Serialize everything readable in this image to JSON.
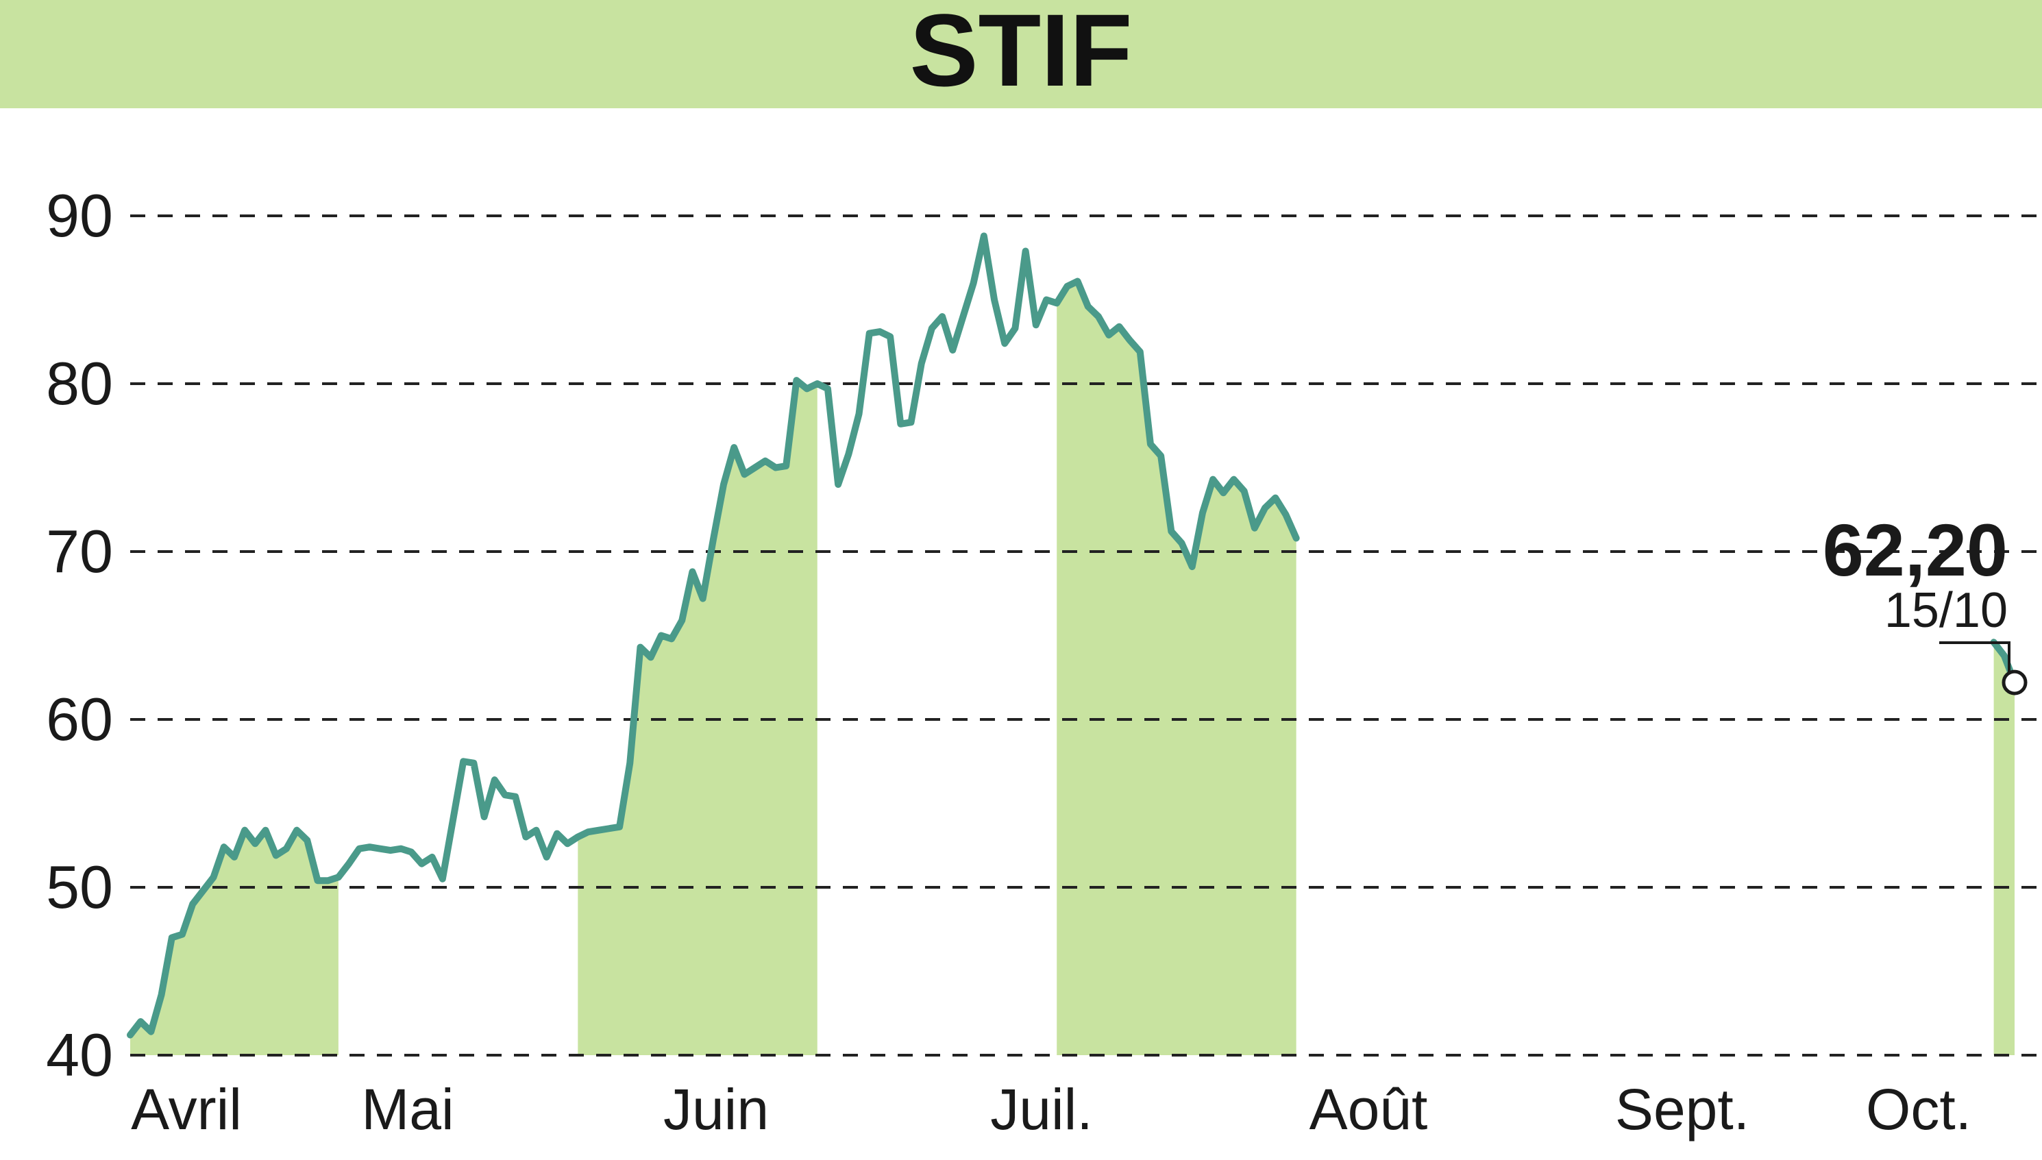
{
  "chart_data": {
    "type": "area",
    "title": "STIF",
    "xlabel": "",
    "ylabel": "",
    "ylim": [
      40,
      90
    ],
    "y_ticks": [
      "40",
      "50",
      "60",
      "70",
      "80",
      "90"
    ],
    "grid": true,
    "months": [
      "Avril",
      "Mai",
      "Juin",
      "Juil.",
      "Août",
      "Sept.",
      "Oct."
    ],
    "series": [
      {
        "values": [
          41.2,
          42.0,
          41.4,
          43.6,
          47.0,
          47.2,
          49.0,
          49.8,
          50.6,
          52.4,
          51.8,
          53.4,
          52.6,
          53.4,
          51.9,
          52.3,
          53.4,
          52.8,
          50.4,
          50.4,
          50.6,
          51.4,
          52.3,
          52.4,
          52.3,
          52.2,
          52.3,
          52.1,
          51.4,
          51.8,
          50.5,
          54.0,
          57.5,
          57.4,
          54.2,
          56.4,
          55.5,
          55.4,
          53.0,
          53.4,
          51.8,
          53.2,
          52.6,
          53.0,
          53.3,
          53.4,
          53.5,
          53.6,
          57.4,
          64.3,
          63.7,
          65.0,
          64.8,
          65.9,
          68.8,
          67.2,
          70.7,
          74.0,
          76.2,
          74.6,
          75.0,
          75.4,
          75.0,
          75.1,
          80.2,
          79.7,
          80.0,
          79.7,
          74.0,
          75.8,
          78.2,
          83.0,
          83.1,
          82.8,
          77.6,
          77.7,
          81.2,
          83.3,
          84.0,
          82.0,
          84.0,
          86.0,
          88.8,
          85.0,
          82.4,
          83.3,
          87.9,
          83.5,
          85.0,
          84.8,
          85.8,
          86.1,
          84.6,
          84.0,
          82.9,
          83.4,
          82.6,
          81.9,
          76.4,
          75.7,
          71.2,
          70.5,
          69.1,
          72.3,
          74.3,
          73.5,
          74.3,
          73.6,
          71.4,
          72.6,
          73.2,
          72.2,
          70.8,
          null,
          null,
          null,
          null,
          null,
          null,
          null,
          null,
          null,
          null,
          null,
          null,
          null,
          null,
          null,
          null,
          null,
          null,
          null,
          null,
          null,
          null,
          null,
          null,
          null,
          null,
          null,
          null,
          null,
          null,
          null,
          null,
          null,
          null,
          null,
          null,
          null,
          null,
          null,
          null,
          null,
          null,
          null,
          null,
          null,
          null,
          null,
          null,
          null,
          null,
          null,
          null,
          null,
          null,
          null,
          null,
          null,
          null,
          null,
          null,
          null,
          null,
          null,
          null,
          null,
          null,
          64.6,
          63.8,
          62.2
        ]
      }
    ],
    "last_value": "62,20",
    "last_date": "15/10",
    "colors": {
      "line": "#4a9a8a",
      "fill": "#c8e3a0",
      "header": "#c8e3a0",
      "grid": "#222222",
      "text": "#1a1a1a"
    }
  }
}
